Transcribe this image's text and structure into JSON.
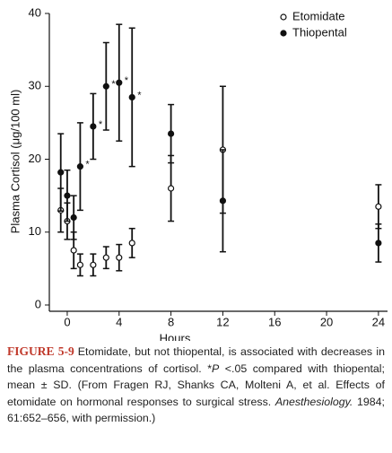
{
  "chart_data": {
    "type": "errorbar",
    "y_label": "Plasma Cortisol (μg/100 ml)",
    "x_label": "Hours",
    "xlim": [
      -1.38,
      24.7
    ],
    "ylim": [
      -0.86,
      40
    ],
    "xticks": [
      0,
      4,
      8,
      12,
      16,
      20,
      24
    ],
    "yticks": [
      0,
      10,
      20,
      30,
      40
    ],
    "legend": "top-right",
    "series": [
      {
        "name": "Etomidate",
        "color": "#111",
        "filled": false,
        "x": [
          -0.5,
          0,
          0.5,
          1,
          2,
          3,
          4,
          5,
          8,
          12,
          24
        ],
        "values": [
          13,
          11.5,
          7.5,
          5.5,
          5.5,
          6.5,
          6.5,
          8.5,
          16,
          21.3,
          13.5
        ],
        "errors": [
          3,
          2.5,
          2.5,
          1.5,
          1.5,
          1.5,
          1.8,
          2,
          4.5,
          8.7,
          3
        ]
      },
      {
        "name": "Thiopental",
        "color": "#111",
        "filled": true,
        "x": [
          -0.5,
          0,
          0.5,
          1,
          2,
          3,
          4,
          5,
          8,
          12,
          24
        ],
        "values": [
          18.2,
          15,
          12,
          19,
          24.5,
          30,
          30.5,
          28.5,
          23.5,
          14.3,
          8.5
        ],
        "errors": [
          5.3,
          3.5,
          3,
          6,
          4.5,
          6,
          8,
          9.5,
          4,
          7,
          2.6
        ]
      }
    ],
    "annotations": [
      {
        "text": "*",
        "x": 1,
        "y": 19
      },
      {
        "text": "*",
        "x": 2,
        "y": 24.5
      },
      {
        "text": "*",
        "x": 3,
        "y": 30
      },
      {
        "text": "*",
        "x": 4,
        "y": 30.5
      },
      {
        "text": "*",
        "x": 5,
        "y": 28.5
      }
    ]
  },
  "caption": {
    "label": "FIGURE 5-9",
    "segments": [
      "Etomidate, but not thiopental, is associated with decreases in the plasma concentrations of cortisol. *",
      "P",
      " <.05 compared with thiopental; mean ± SD. (From Fragen RJ, Shanks CA, Molteni A, et al. Effects of etomidate on hormonal responses to surgical stress. ",
      "Anesthesiology.",
      " 1984; 61:652–656, with permission.)"
    ]
  }
}
